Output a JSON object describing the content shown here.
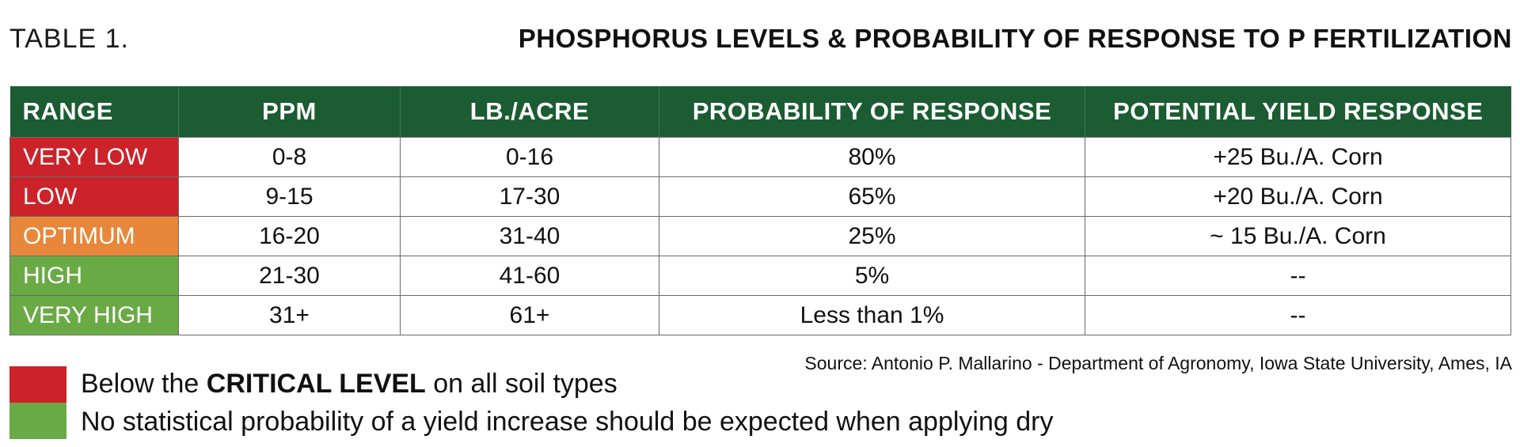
{
  "header": {
    "label": "TABLE 1.",
    "title": "PHOSPHORUS LEVELS & PROBABILITY OF RESPONSE TO P FERTILIZATION"
  },
  "table": {
    "columns": [
      "RANGE",
      "PPM",
      "LB./ACRE",
      "PROBABILITY OF RESPONSE",
      "POTENTIAL YIELD RESPONSE"
    ],
    "rows": [
      {
        "range": "VERY LOW",
        "ppm": "0-8",
        "lb_acre": "0-16",
        "probability": "80%",
        "yield": "+25 Bu./A. Corn",
        "color": "#cc2229"
      },
      {
        "range": "LOW",
        "ppm": "9-15",
        "lb_acre": "17-30",
        "probability": "65%",
        "yield": "+20 Bu./A. Corn",
        "color": "#cc2229"
      },
      {
        "range": "OPTIMUM",
        "ppm": "16-20",
        "lb_acre": "31-40",
        "probability": "25%",
        "yield": "~ 15 Bu./A. Corn",
        "color": "#e8873a"
      },
      {
        "range": "HIGH",
        "ppm": "21-30",
        "lb_acre": "41-60",
        "probability": "5%",
        "yield": "--",
        "color": "#6aaa45"
      },
      {
        "range": "VERY HIGH",
        "ppm": "31+",
        "lb_acre": "61+",
        "probability": "Less than 1%",
        "yield": "--",
        "color": "#6aaa45"
      }
    ]
  },
  "source": "Source: Antonio P. Mallarino - Department of Agronomy, Iowa State University, Ames, IA",
  "legend": [
    {
      "color": "#cc2229",
      "prefix": "Below the ",
      "bold": "CRITICAL LEVEL",
      "suffix": " on all soil types"
    },
    {
      "color": "#6aaa45",
      "prefix": "No statistical probability of a yield increase should be expected when applying dry",
      "bold": "",
      "suffix": ""
    }
  ]
}
